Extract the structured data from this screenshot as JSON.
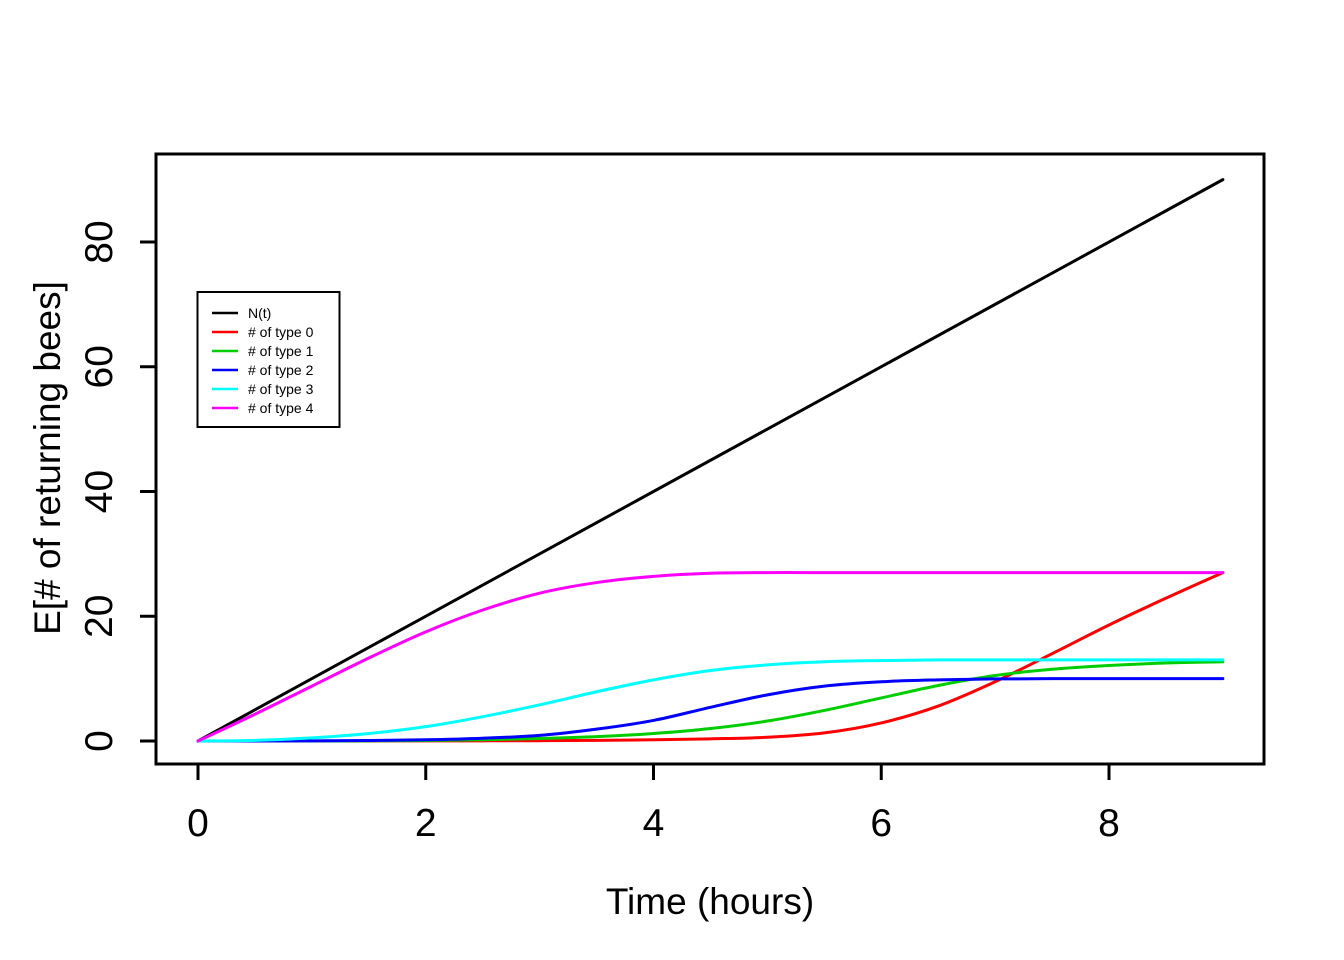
{
  "figure": {
    "background_color": "#ffffff",
    "frame_color": "#000000"
  },
  "chart_data": {
    "type": "line",
    "title": "",
    "xlabel": "Time (hours)",
    "ylabel": "E[# of returning bees]",
    "xlim": [
      0,
      9
    ],
    "ylim": [
      0,
      90
    ],
    "x_ticks": [
      0,
      2,
      4,
      6,
      8
    ],
    "y_ticks": [
      0,
      20,
      40,
      60,
      80
    ],
    "grid": false,
    "legend_position": "upper-left-inside",
    "series": [
      {
        "name": "N(t)",
        "color": "#000000",
        "points": [
          [
            0,
            0
          ],
          [
            9,
            90
          ]
        ]
      },
      {
        "name": "# of type 0",
        "color": "#FF0000",
        "points": [
          [
            0,
            0
          ],
          [
            0.5,
            0
          ],
          [
            1,
            0
          ],
          [
            1.5,
            0.01
          ],
          [
            2,
            0.02
          ],
          [
            2.5,
            0.03
          ],
          [
            3,
            0.05
          ],
          [
            3.5,
            0.1
          ],
          [
            4,
            0.2
          ],
          [
            4.5,
            0.35
          ],
          [
            5,
            0.6
          ],
          [
            5.5,
            1.3
          ],
          [
            6,
            2.9
          ],
          [
            6.5,
            5.6
          ],
          [
            7,
            9.5
          ],
          [
            7.5,
            14.0
          ],
          [
            8,
            18.6
          ],
          [
            8.5,
            22.9
          ],
          [
            9,
            27
          ]
        ]
      },
      {
        "name": "# of type 1",
        "color": "#00CD00",
        "points": [
          [
            0,
            0
          ],
          [
            0.5,
            0
          ],
          [
            1,
            0.01
          ],
          [
            1.5,
            0.03
          ],
          [
            2,
            0.08
          ],
          [
            2.5,
            0.2
          ],
          [
            3,
            0.4
          ],
          [
            3.5,
            0.7
          ],
          [
            4,
            1.2
          ],
          [
            4.5,
            2.0
          ],
          [
            5,
            3.2
          ],
          [
            5.5,
            4.9
          ],
          [
            6,
            6.9
          ],
          [
            6.5,
            8.9
          ],
          [
            7,
            10.5
          ],
          [
            7.5,
            11.5
          ],
          [
            8,
            12.1
          ],
          [
            8.5,
            12.5
          ],
          [
            9,
            12.7
          ]
        ]
      },
      {
        "name": "# of type 2",
        "color": "#0000FF",
        "points": [
          [
            0,
            0
          ],
          [
            0.5,
            0
          ],
          [
            1,
            0.02
          ],
          [
            1.5,
            0.08
          ],
          [
            2,
            0.2
          ],
          [
            2.5,
            0.45
          ],
          [
            3,
            0.9
          ],
          [
            3.5,
            1.9
          ],
          [
            4,
            3.3
          ],
          [
            4.5,
            5.4
          ],
          [
            5,
            7.4
          ],
          [
            5.5,
            8.8
          ],
          [
            6,
            9.5
          ],
          [
            6.5,
            9.8
          ],
          [
            7,
            9.95
          ],
          [
            7.5,
            10
          ],
          [
            8,
            10
          ],
          [
            8.5,
            10
          ],
          [
            9,
            10
          ]
        ]
      },
      {
        "name": "# of type 3",
        "color": "#00FFFF",
        "points": [
          [
            0,
            0
          ],
          [
            0.5,
            0.1
          ],
          [
            1,
            0.5
          ],
          [
            1.5,
            1.2
          ],
          [
            2,
            2.3
          ],
          [
            2.5,
            3.9
          ],
          [
            3,
            5.8
          ],
          [
            3.5,
            7.9
          ],
          [
            4,
            9.8
          ],
          [
            4.5,
            11.3
          ],
          [
            5,
            12.2
          ],
          [
            5.5,
            12.7
          ],
          [
            6,
            12.9
          ],
          [
            6.5,
            13
          ],
          [
            7,
            13
          ],
          [
            7.5,
            13
          ],
          [
            8,
            13
          ],
          [
            8.5,
            13
          ],
          [
            9,
            13
          ]
        ]
      },
      {
        "name": "# of type 4",
        "color": "#FF00FF",
        "points": [
          [
            0,
            0
          ],
          [
            0.5,
            4.3
          ],
          [
            1,
            8.8
          ],
          [
            1.5,
            13.3
          ],
          [
            2,
            17.5
          ],
          [
            2.5,
            21.0
          ],
          [
            3,
            23.7
          ],
          [
            3.5,
            25.4
          ],
          [
            4,
            26.4
          ],
          [
            4.5,
            26.9
          ],
          [
            5,
            27
          ],
          [
            5.5,
            27
          ],
          [
            6,
            27
          ],
          [
            6.5,
            27
          ],
          [
            7,
            27
          ],
          [
            7.5,
            27
          ],
          [
            8,
            27
          ],
          [
            8.5,
            27
          ],
          [
            9,
            27
          ]
        ]
      }
    ]
  }
}
